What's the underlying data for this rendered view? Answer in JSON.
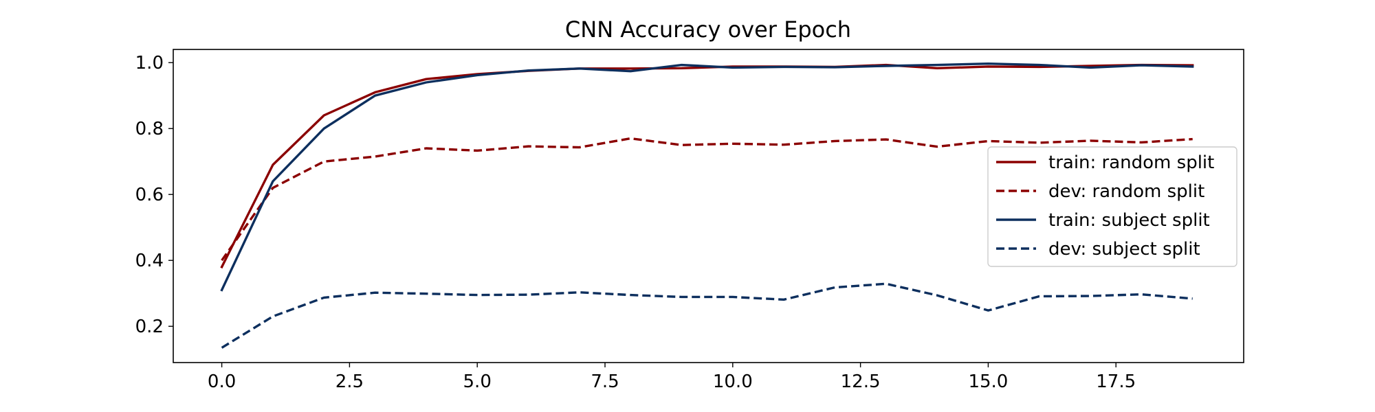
{
  "chart_data": {
    "type": "line",
    "title": "CNN Accuracy over Epoch",
    "xlabel": "",
    "ylabel": "",
    "xlim": [
      -0.95,
      20.0
    ],
    "ylim": [
      0.09,
      1.04
    ],
    "x_ticks": [
      0.0,
      2.5,
      5.0,
      7.5,
      10.0,
      12.5,
      15.0,
      17.5
    ],
    "x_tick_labels": [
      "0.0",
      "2.5",
      "5.0",
      "7.5",
      "10.0",
      "12.5",
      "15.0",
      "17.5"
    ],
    "y_ticks": [
      0.2,
      0.4,
      0.6,
      0.8,
      1.0
    ],
    "y_tick_labels": [
      "0.2",
      "0.4",
      "0.6",
      "0.8",
      "1.0"
    ],
    "grid": false,
    "legend_position": "center-right",
    "x": [
      0,
      1,
      2,
      3,
      4,
      5,
      6,
      7,
      8,
      9,
      10,
      11,
      12,
      13,
      14,
      15,
      16,
      17,
      18,
      19
    ],
    "series": [
      {
        "name": "train: random split",
        "color": "#8b0000",
        "style": "solid",
        "values": [
          0.38,
          0.69,
          0.84,
          0.91,
          0.95,
          0.965,
          0.975,
          0.982,
          0.982,
          0.983,
          0.988,
          0.988,
          0.987,
          0.993,
          0.983,
          0.988,
          0.987,
          0.99,
          0.993,
          0.992
        ]
      },
      {
        "name": "dev: random split",
        "color": "#8b0000",
        "style": "dashed",
        "values": [
          0.4,
          0.62,
          0.7,
          0.715,
          0.74,
          0.733,
          0.746,
          0.743,
          0.77,
          0.75,
          0.754,
          0.751,
          0.762,
          0.767,
          0.745,
          0.762,
          0.757,
          0.763,
          0.758,
          0.768
        ]
      },
      {
        "name": "train: subject split",
        "color": "#0d2f5e",
        "style": "solid",
        "values": [
          0.31,
          0.64,
          0.8,
          0.9,
          0.94,
          0.962,
          0.976,
          0.982,
          0.974,
          0.993,
          0.985,
          0.987,
          0.986,
          0.99,
          0.993,
          0.997,
          0.993,
          0.985,
          0.992,
          0.988
        ]
      },
      {
        "name": "dev: subject split",
        "color": "#0d2f5e",
        "style": "dashed",
        "values": [
          0.135,
          0.23,
          0.287,
          0.302,
          0.299,
          0.295,
          0.296,
          0.303,
          0.295,
          0.289,
          0.289,
          0.281,
          0.318,
          0.329,
          0.294,
          0.248,
          0.291,
          0.292,
          0.297,
          0.284
        ]
      }
    ]
  }
}
